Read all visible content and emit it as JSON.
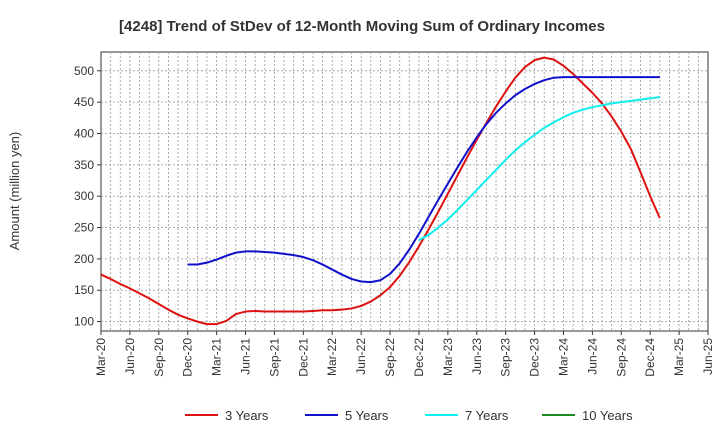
{
  "chart_data": {
    "type": "line",
    "title": "[4248]  Trend of StDev of 12-Month Moving Sum of Ordinary Incomes",
    "ylabel": "Amount (million yen)",
    "xlabel": "",
    "ylim": [
      85,
      530
    ],
    "y_ticks": [
      100,
      150,
      200,
      250,
      300,
      350,
      400,
      450,
      500
    ],
    "x_ticks": [
      "Mar-20",
      "Jun-20",
      "Sep-20",
      "Dec-20",
      "Mar-21",
      "Jun-21",
      "Sep-21",
      "Dec-21",
      "Mar-22",
      "Jun-22",
      "Sep-22",
      "Dec-22",
      "Mar-23",
      "Jun-23",
      "Sep-23",
      "Dec-23",
      "Mar-24",
      "Jun-24",
      "Sep-24",
      "Dec-24",
      "Mar-25",
      "Jun-25"
    ],
    "grid": true,
    "legend_position": "bottom",
    "series": [
      {
        "name": "3 Years",
        "color": "#dd1111",
        "start_index": 0,
        "values": [
          175,
          168,
          160,
          153,
          145,
          137,
          128,
          119,
          111,
          105,
          100,
          96,
          96,
          101,
          112,
          116,
          117,
          116,
          116,
          116,
          116,
          116,
          117,
          118,
          118,
          119,
          121,
          125,
          132,
          142,
          155,
          173,
          195,
          220,
          247,
          275,
          304,
          333,
          362,
          390,
          417,
          443,
          467,
          489,
          506,
          517,
          521,
          518,
          508,
          495,
          480,
          465,
          448,
          427,
          403,
          375,
          338,
          300,
          265
        ]
      },
      {
        "name": "5 Years",
        "color": "#1111cc",
        "start_index": 9,
        "values": [
          191,
          191,
          194,
          199,
          205,
          210,
          212,
          212,
          211,
          210,
          208,
          206,
          203,
          198,
          191,
          183,
          175,
          168,
          164,
          163,
          166,
          176,
          193,
          215,
          240,
          267,
          294,
          320,
          346,
          371,
          394,
          415,
          433,
          448,
          461,
          471,
          479,
          485,
          489,
          490,
          490,
          490,
          490,
          490,
          490,
          490,
          490,
          490,
          490,
          490
        ]
      },
      {
        "name": "7 Years",
        "color": "#11eeee",
        "start_index": 33,
        "values": [
          230,
          238,
          250,
          263,
          278,
          294,
          310,
          326,
          342,
          358,
          373,
          386,
          398,
          409,
          418,
          426,
          433,
          438,
          442,
          445,
          448,
          450,
          452,
          454,
          456,
          458
        ]
      },
      {
        "name": "10 Years",
        "color": "#228822",
        "start_index": 0,
        "values": []
      }
    ]
  }
}
